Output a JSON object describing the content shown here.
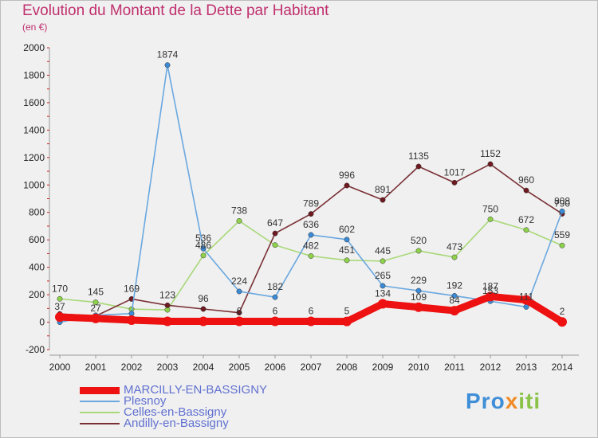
{
  "title": "Evolution du Montant de la Dette par Habitant",
  "subtitle": "(en €)",
  "brand": {
    "parts": [
      "Pro",
      "x",
      "iti"
    ],
    "colors": [
      "#3f8ed8",
      "#f08a24",
      "#8bc34a"
    ]
  },
  "chart_data": {
    "type": "line",
    "title": "Evolution du Montant de la Dette par Habitant",
    "ylabel": "(en €)",
    "xlabel": "",
    "ylim": [
      -200,
      2000
    ],
    "yticks": [
      -200,
      0,
      200,
      400,
      600,
      800,
      1000,
      1200,
      1400,
      1600,
      1800,
      2000
    ],
    "grid": false,
    "legend": "bottom-left",
    "x": [
      "2000",
      "2001",
      "2002",
      "2003",
      "2004",
      "2005",
      "2006",
      "2007",
      "2008",
      "2009",
      "2010",
      "2011",
      "2012",
      "2013",
      "2014"
    ],
    "series": [
      {
        "name": "Celles-en-Bassigny",
        "color": "#8ed14a",
        "line_color": "#a8d878",
        "values": [
          170,
          145,
          95,
          90,
          486,
          738,
          562,
          482,
          451,
          445,
          520,
          473,
          750,
          672,
          559
        ],
        "labels": [
          "170",
          "145",
          "",
          "",
          "486",
          "738",
          "",
          "482",
          "451",
          "445",
          "520",
          "473",
          "750",
          "672",
          "559"
        ]
      },
      {
        "name": "Andilly-en-Bassigny",
        "color": "#6e1a20",
        "line_color": "#7a3035",
        "values": [
          60,
          45,
          169,
          123,
          96,
          69,
          647,
          789,
          996,
          891,
          1135,
          1017,
          1152,
          960,
          790
        ],
        "labels": [
          "",
          "",
          "169",
          "123",
          "96",
          "",
          "647",
          "789",
          "996",
          "891",
          "1135",
          "1017",
          "1152",
          "960",
          "790"
        ]
      },
      {
        "name": "Plesnoy",
        "color": "#3a8ad6",
        "line_color": "#6aa8e0",
        "values": [
          0,
          50,
          63,
          1874,
          536,
          224,
          182,
          636,
          602,
          265,
          229,
          192,
          153,
          111,
          808
        ],
        "labels": [
          "",
          "",
          "",
          "1874",
          "536",
          "224",
          "182",
          "636",
          "602",
          "265",
          "229",
          "192",
          "153",
          "111",
          "808"
        ]
      },
      {
        "name": "MARCILLY-EN-BASSIGNY",
        "color": "#ee1111",
        "line_color": "#ee1111",
        "values": [
          37,
          27,
          15,
          6,
          6,
          6,
          6,
          6,
          5,
          134,
          109,
          84,
          187,
          162,
          2
        ],
        "labels": [
          "37",
          "27",
          "",
          "",
          "",
          "6",
          "6",
          "6",
          "5",
          "134",
          "109",
          "84",
          "187",
          "",
          "2"
        ]
      }
    ]
  },
  "legend_items": [
    {
      "name": "MARCILLY-EN-BASSIGNY",
      "color": "#ee1111",
      "thickness": 9
    },
    {
      "name": "Plesnoy",
      "color": "#6aa8e0",
      "thickness": 2
    },
    {
      "name": "Celles-en-Bassigny",
      "color": "#a8d878",
      "thickness": 2
    },
    {
      "name": "Andilly-en-Bassigny",
      "color": "#7a3035",
      "thickness": 2
    }
  ]
}
